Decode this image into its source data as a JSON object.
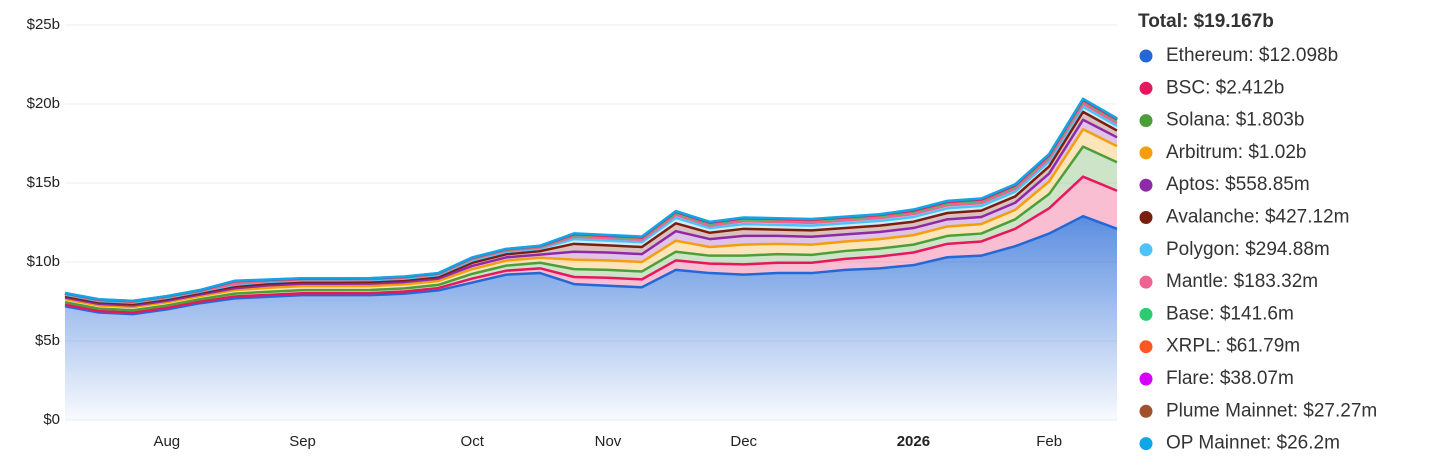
{
  "chart_data": {
    "type": "stacked-area",
    "categories": [
      null,
      null,
      null,
      "Aug",
      null,
      null,
      null,
      "Sep",
      null,
      null,
      null,
      null,
      "Oct",
      null,
      null,
      null,
      "Nov",
      null,
      null,
      null,
      "Dec",
      null,
      null,
      null,
      null,
      "2026",
      null,
      null,
      null,
      "Feb",
      null,
      null
    ],
    "ylim": [
      0,
      25
    ],
    "yticks": [
      {
        "value": 0,
        "label": "$0"
      },
      {
        "value": 5,
        "label": "$5b"
      },
      {
        "value": 10,
        "label": "$10b"
      },
      {
        "value": 15,
        "label": "$15b"
      },
      {
        "value": 20,
        "label": "$20b"
      },
      {
        "value": 25,
        "label": "$25b"
      }
    ],
    "grid": true,
    "legend_position": "right",
    "total_label": "Total: $19.167b",
    "series": [
      {
        "name": "Ethereum: $12.098b",
        "color": "#2468d6",
        "values": [
          7.2,
          6.8,
          6.7,
          7.0,
          7.4,
          7.7,
          7.8,
          7.9,
          7.9,
          7.9,
          8.0,
          8.2,
          8.7,
          9.2,
          9.3,
          8.6,
          8.5,
          8.4,
          9.5,
          9.3,
          9.2,
          9.3,
          9.3,
          9.5,
          9.6,
          9.8,
          10.3,
          10.4,
          11.0,
          11.8,
          12.9,
          12.098
        ]
      },
      {
        "name": "BSC: $2.412b",
        "color": "#e8175d",
        "values": [
          0.1,
          0.1,
          0.1,
          0.1,
          0.1,
          0.12,
          0.12,
          0.12,
          0.12,
          0.13,
          0.13,
          0.15,
          0.25,
          0.25,
          0.3,
          0.45,
          0.5,
          0.5,
          0.6,
          0.6,
          0.65,
          0.65,
          0.65,
          0.7,
          0.75,
          0.8,
          0.85,
          0.9,
          1.1,
          1.6,
          2.5,
          2.412
        ]
      },
      {
        "name": "Solana: $1.803b",
        "color": "#4c9f38",
        "values": [
          0.15,
          0.15,
          0.15,
          0.15,
          0.15,
          0.18,
          0.2,
          0.2,
          0.2,
          0.2,
          0.2,
          0.2,
          0.3,
          0.32,
          0.35,
          0.5,
          0.5,
          0.5,
          0.55,
          0.5,
          0.55,
          0.55,
          0.5,
          0.5,
          0.5,
          0.5,
          0.5,
          0.5,
          0.6,
          0.9,
          1.9,
          1.803
        ]
      },
      {
        "name": "Arbitrum: $1.02b",
        "color": "#f59e0b",
        "values": [
          0.2,
          0.2,
          0.2,
          0.2,
          0.2,
          0.22,
          0.25,
          0.25,
          0.25,
          0.25,
          0.25,
          0.25,
          0.3,
          0.32,
          0.32,
          0.6,
          0.6,
          0.6,
          0.7,
          0.55,
          0.7,
          0.65,
          0.65,
          0.6,
          0.6,
          0.6,
          0.6,
          0.6,
          0.6,
          0.8,
          1.1,
          1.02
        ]
      },
      {
        "name": "Aptos: $558.85m",
        "color": "#8e2aa8",
        "values": [
          0.1,
          0.1,
          0.1,
          0.1,
          0.1,
          0.12,
          0.15,
          0.15,
          0.15,
          0.15,
          0.15,
          0.15,
          0.2,
          0.2,
          0.2,
          0.5,
          0.5,
          0.5,
          0.6,
          0.5,
          0.55,
          0.5,
          0.5,
          0.45,
          0.45,
          0.45,
          0.45,
          0.45,
          0.45,
          0.5,
          0.6,
          0.559
        ]
      },
      {
        "name": "Avalanche: $427.12m",
        "color": "#7a1f0f",
        "values": [
          0.1,
          0.1,
          0.1,
          0.1,
          0.1,
          0.12,
          0.12,
          0.12,
          0.12,
          0.12,
          0.12,
          0.12,
          0.2,
          0.2,
          0.22,
          0.5,
          0.45,
          0.45,
          0.5,
          0.4,
          0.45,
          0.4,
          0.4,
          0.4,
          0.4,
          0.4,
          0.4,
          0.4,
          0.4,
          0.45,
          0.5,
          0.427
        ]
      },
      {
        "name": "Polygon: $294.88m",
        "color": "#4fc3f7",
        "values": [
          0.08,
          0.08,
          0.08,
          0.08,
          0.08,
          0.1,
          0.1,
          0.1,
          0.1,
          0.1,
          0.1,
          0.1,
          0.15,
          0.15,
          0.15,
          0.3,
          0.3,
          0.3,
          0.35,
          0.3,
          0.3,
          0.3,
          0.3,
          0.3,
          0.3,
          0.3,
          0.3,
          0.3,
          0.3,
          0.3,
          0.32,
          0.295
        ]
      },
      {
        "name": "Mantle: $183.32m",
        "color": "#f06292",
        "values": [
          0.05,
          0.05,
          0.05,
          0.05,
          0.05,
          0.06,
          0.06,
          0.06,
          0.06,
          0.06,
          0.06,
          0.06,
          0.08,
          0.08,
          0.08,
          0.15,
          0.15,
          0.15,
          0.18,
          0.15,
          0.18,
          0.18,
          0.18,
          0.18,
          0.18,
          0.18,
          0.18,
          0.18,
          0.18,
          0.18,
          0.19,
          0.183
        ]
      },
      {
        "name": "Base: $141.6m",
        "color": "#2ecc71",
        "values": [
          0.02,
          0.02,
          0.02,
          0.02,
          0.02,
          0.15,
          0.05,
          0.03,
          0.03,
          0.03,
          0.03,
          0.03,
          0.05,
          0.05,
          0.05,
          0.1,
          0.1,
          0.1,
          0.12,
          0.12,
          0.12,
          0.12,
          0.12,
          0.12,
          0.12,
          0.13,
          0.13,
          0.13,
          0.13,
          0.14,
          0.15,
          0.142
        ]
      },
      {
        "name": "XRPL: $61.79m",
        "color": "#ff5722",
        "values": [
          0.01,
          0.01,
          0.01,
          0.01,
          0.01,
          0.01,
          0.01,
          0.01,
          0.01,
          0.01,
          0.01,
          0.01,
          0.02,
          0.02,
          0.02,
          0.04,
          0.04,
          0.04,
          0.05,
          0.05,
          0.05,
          0.05,
          0.05,
          0.05,
          0.05,
          0.06,
          0.06,
          0.06,
          0.06,
          0.06,
          0.07,
          0.062
        ]
      },
      {
        "name": "Flare: $38.07m",
        "color": "#d500f9",
        "values": [
          0.01,
          0.01,
          0.01,
          0.01,
          0.01,
          0.01,
          0.01,
          0.01,
          0.01,
          0.01,
          0.01,
          0.01,
          0.02,
          0.02,
          0.02,
          0.03,
          0.03,
          0.03,
          0.03,
          0.03,
          0.03,
          0.03,
          0.03,
          0.03,
          0.03,
          0.04,
          0.04,
          0.04,
          0.04,
          0.04,
          0.04,
          0.038
        ]
      },
      {
        "name": "Plume Mainnet: $27.27m",
        "color": "#a0522d",
        "values": [
          0.01,
          0.01,
          0.01,
          0.01,
          0.01,
          0.01,
          0.01,
          0.01,
          0.01,
          0.01,
          0.01,
          0.01,
          0.01,
          0.01,
          0.01,
          0.02,
          0.02,
          0.02,
          0.02,
          0.02,
          0.02,
          0.02,
          0.02,
          0.02,
          0.02,
          0.03,
          0.03,
          0.03,
          0.03,
          0.03,
          0.03,
          0.027
        ]
      },
      {
        "name": "OP Mainnet: $26.2m",
        "color": "#0ea5e9",
        "values": [
          0.01,
          0.01,
          0.01,
          0.01,
          0.01,
          0.01,
          0.01,
          0.01,
          0.01,
          0.01,
          0.01,
          0.01,
          0.01,
          0.01,
          0.01,
          0.02,
          0.02,
          0.02,
          0.02,
          0.02,
          0.02,
          0.02,
          0.02,
          0.02,
          0.02,
          0.03,
          0.03,
          0.03,
          0.03,
          0.03,
          0.03,
          0.026
        ]
      }
    ]
  }
}
